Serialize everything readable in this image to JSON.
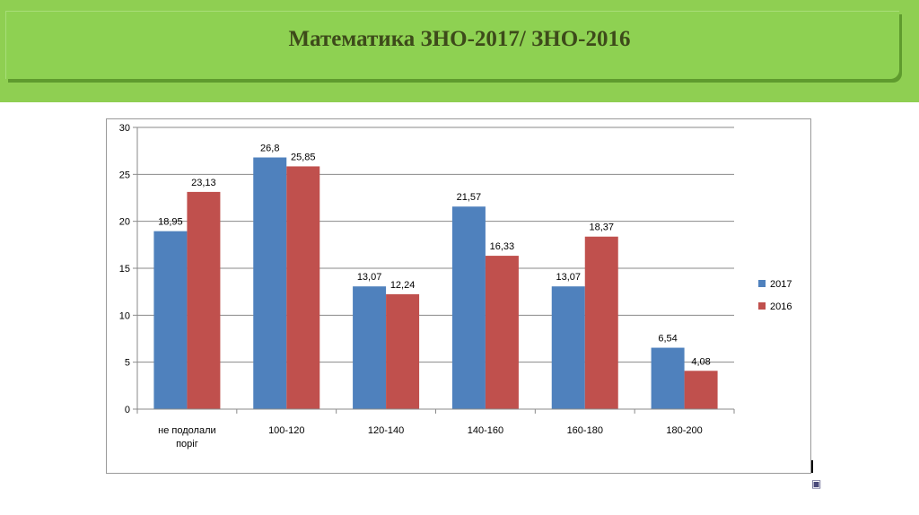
{
  "slide": {
    "title": "Математика ЗНО-2017/ ЗНО-2016"
  },
  "chart_data": {
    "type": "bar",
    "categories": [
      "не подолали поріг",
      "100-120",
      "120-140",
      "140-160",
      "160-180",
      "180-200"
    ],
    "series": [
      {
        "name": "2017",
        "color": "#4f81bd",
        "values": [
          18.95,
          26.8,
          13.07,
          21.57,
          13.07,
          6.54
        ],
        "labels": [
          "18,95",
          "26,8",
          "13,07",
          "21,57",
          "13,07",
          "6,54"
        ]
      },
      {
        "name": "2016",
        "color": "#c0504d",
        "values": [
          23.13,
          25.85,
          12.24,
          16.33,
          18.37,
          4.08
        ],
        "labels": [
          "23,13",
          "25,85",
          "12,24",
          "16,33",
          "18,37",
          "4,08"
        ]
      }
    ],
    "yticks": [
      0,
      5,
      10,
      15,
      20,
      25,
      30
    ],
    "ylim": [
      0,
      30
    ],
    "grid": true,
    "legend_position": "right"
  }
}
